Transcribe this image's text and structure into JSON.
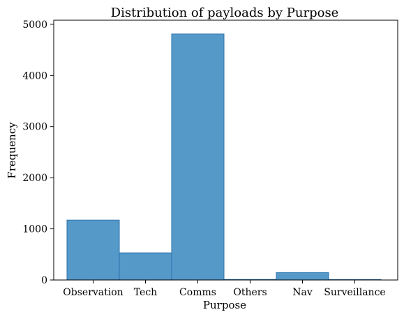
{
  "chart_data": {
    "type": "bar",
    "title": "Distribution of payloads by Purpose",
    "xlabel": "Purpose",
    "ylabel": "Frequency",
    "categories": [
      "Observation",
      "Tech",
      "Comms",
      "Others",
      "Nav",
      "Surveillance"
    ],
    "values": [
      1170,
      530,
      4810,
      10,
      145,
      8
    ],
    "ylim": [
      0,
      5080
    ],
    "yticks": [
      0,
      1000,
      2000,
      3000,
      4000,
      5000
    ],
    "grid": false,
    "bar_fill": "#5599c8",
    "bar_edge": "#2a72ad"
  }
}
